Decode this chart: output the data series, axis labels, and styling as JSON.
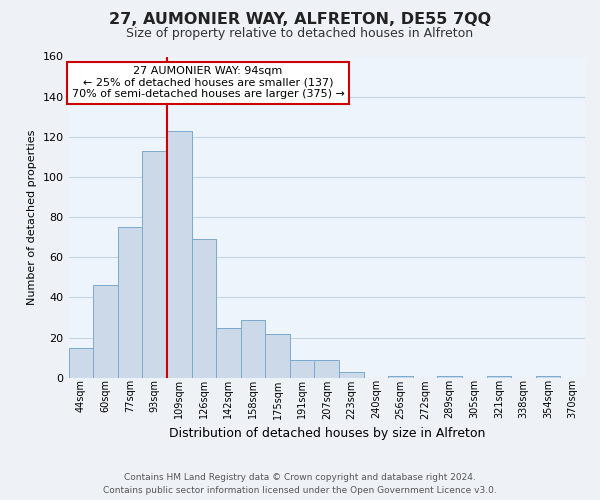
{
  "title": "27, AUMONIER WAY, ALFRETON, DE55 7QQ",
  "subtitle": "Size of property relative to detached houses in Alfreton",
  "xlabel": "Distribution of detached houses by size in Alfreton",
  "ylabel": "Number of detached properties",
  "bar_labels": [
    "44sqm",
    "60sqm",
    "77sqm",
    "93sqm",
    "109sqm",
    "126sqm",
    "142sqm",
    "158sqm",
    "175sqm",
    "191sqm",
    "207sqm",
    "223sqm",
    "240sqm",
    "256sqm",
    "272sqm",
    "289sqm",
    "305sqm",
    "321sqm",
    "338sqm",
    "354sqm",
    "370sqm"
  ],
  "bar_values": [
    15,
    46,
    75,
    113,
    123,
    69,
    25,
    29,
    22,
    9,
    9,
    3,
    0,
    1,
    0,
    1,
    0,
    1,
    0,
    1,
    0
  ],
  "bar_color": "#ccd9e8",
  "bar_edge_color": "#7aaacf",
  "marker_color": "#cc0000",
  "annotation_line1": "27 AUMONIER WAY: 94sqm",
  "annotation_line2": "← 25% of detached houses are smaller (137)",
  "annotation_line3": "70% of semi-detached houses are larger (375) →",
  "annotation_box_color": "#ffffff",
  "annotation_box_edge": "#cc0000",
  "ylim": [
    0,
    160
  ],
  "yticks": [
    0,
    20,
    40,
    60,
    80,
    100,
    120,
    140,
    160
  ],
  "footer_line1": "Contains HM Land Registry data © Crown copyright and database right 2024.",
  "footer_line2": "Contains public sector information licensed under the Open Government Licence v3.0.",
  "bg_color": "#eef2f7",
  "plot_bg_color": "#eef4fb",
  "grid_color": "#c5d5e5"
}
